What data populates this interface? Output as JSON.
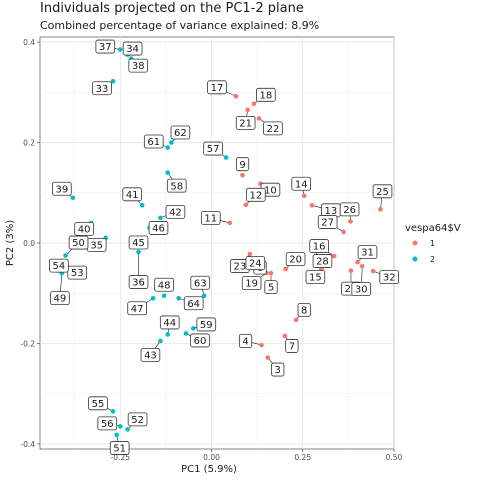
{
  "chart_data": {
    "type": "scatter",
    "title": "Individuals projected on the PC1-2 plane",
    "subtitle": "Combined percentage of variance explained: 8.9%",
    "xlabel": "PC1 (5.9%)",
    "ylabel": "PC2 (3%)",
    "xlim": [
      -0.47,
      0.5
    ],
    "ylim": [
      -0.41,
      0.41
    ],
    "x_ticks": [
      -0.25,
      0.0,
      0.25,
      0.5
    ],
    "x_tick_labels": [
      "-0.25",
      "0.00",
      "0.25",
      "0.50"
    ],
    "y_ticks": [
      -0.4,
      -0.2,
      0.0,
      0.2,
      0.4
    ],
    "y_tick_labels": [
      "-0.4",
      "-0.2",
      "0.0",
      "0.2",
      "0.4"
    ],
    "grid": true,
    "legend": {
      "title": "vespa64$V",
      "placement": "right",
      "entries": [
        {
          "name": "1",
          "color": "#F8766D"
        },
        {
          "name": "2",
          "color": "#00BFC4"
        }
      ]
    },
    "series": [
      {
        "name": "1",
        "color": "#F8766D",
        "points": [
          {
            "label": "3",
            "x": 0.154,
            "y": -0.228
          },
          {
            "label": "4",
            "x": 0.137,
            "y": -0.203
          },
          {
            "label": "5",
            "x": 0.163,
            "y": -0.06
          },
          {
            "label": "6",
            "x": 0.1,
            "y": -0.037
          },
          {
            "label": "7",
            "x": 0.201,
            "y": -0.185
          },
          {
            "label": "8",
            "x": 0.232,
            "y": -0.153
          },
          {
            "label": "9",
            "x": 0.085,
            "y": 0.135
          },
          {
            "label": "10",
            "x": 0.134,
            "y": 0.118
          },
          {
            "label": "11",
            "x": 0.05,
            "y": 0.04
          },
          {
            "label": "12",
            "x": 0.094,
            "y": 0.076
          },
          {
            "label": "13",
            "x": 0.275,
            "y": 0.075
          },
          {
            "label": "14",
            "x": 0.254,
            "y": 0.094
          },
          {
            "label": "15",
            "x": 0.301,
            "y": -0.052
          },
          {
            "label": "16",
            "x": 0.336,
            "y": -0.026
          },
          {
            "label": "17",
            "x": 0.067,
            "y": 0.292
          },
          {
            "label": "18",
            "x": 0.116,
            "y": 0.277
          },
          {
            "label": "19",
            "x": 0.151,
            "y": -0.06
          },
          {
            "label": "20",
            "x": 0.203,
            "y": -0.052
          },
          {
            "label": "21",
            "x": 0.099,
            "y": 0.265
          },
          {
            "label": "22",
            "x": 0.13,
            "y": 0.248
          },
          {
            "label": "23",
            "x": 0.105,
            "y": -0.022
          },
          {
            "label": "24",
            "x": 0.12,
            "y": -0.04
          },
          {
            "label": "25",
            "x": 0.463,
            "y": 0.067
          },
          {
            "label": "26",
            "x": 0.381,
            "y": 0.043
          },
          {
            "label": "27",
            "x": 0.362,
            "y": 0.022
          },
          {
            "label": "28",
            "x": 0.282,
            "y": -0.016
          },
          {
            "label": "29",
            "x": 0.382,
            "y": -0.055
          },
          {
            "label": "30",
            "x": 0.413,
            "y": -0.046
          },
          {
            "label": "31",
            "x": 0.4,
            "y": -0.038
          },
          {
            "label": "32",
            "x": 0.443,
            "y": -0.056
          }
        ]
      },
      {
        "name": "2",
        "color": "#00BFC4",
        "points": [
          {
            "label": "33",
            "x": -0.27,
            "y": 0.322
          },
          {
            "label": "34",
            "x": -0.23,
            "y": 0.375
          },
          {
            "label": "35",
            "x": -0.29,
            "y": 0.01
          },
          {
            "label": "36",
            "x": -0.2,
            "y": -0.018
          },
          {
            "label": "37",
            "x": -0.25,
            "y": 0.385
          },
          {
            "label": "38",
            "x": -0.22,
            "y": 0.367
          },
          {
            "label": "39",
            "x": -0.38,
            "y": 0.09
          },
          {
            "label": "40",
            "x": -0.33,
            "y": 0.04
          },
          {
            "label": "41",
            "x": -0.19,
            "y": 0.075
          },
          {
            "label": "42",
            "x": -0.14,
            "y": 0.05
          },
          {
            "label": "43",
            "x": -0.14,
            "y": -0.195
          },
          {
            "label": "44",
            "x": -0.12,
            "y": -0.182
          },
          {
            "label": "45",
            "x": -0.2,
            "y": 0.001
          },
          {
            "label": "46",
            "x": -0.17,
            "y": 0.03
          },
          {
            "label": "47",
            "x": -0.16,
            "y": -0.11
          },
          {
            "label": "48",
            "x": -0.13,
            "y": -0.105
          },
          {
            "label": "49",
            "x": -0.41,
            "y": -0.06
          },
          {
            "label": "50",
            "x": -0.4,
            "y": -0.025
          },
          {
            "label": "51",
            "x": -0.26,
            "y": -0.382
          },
          {
            "label": "52",
            "x": -0.23,
            "y": -0.371
          },
          {
            "label": "53",
            "x": -0.42,
            "y": -0.055
          },
          {
            "label": "54",
            "x": -0.41,
            "y": -0.043
          },
          {
            "label": "55",
            "x": -0.27,
            "y": -0.335
          },
          {
            "label": "56",
            "x": -0.25,
            "y": -0.365
          },
          {
            "label": "57",
            "x": 0.04,
            "y": 0.17
          },
          {
            "label": "58",
            "x": -0.12,
            "y": 0.14
          },
          {
            "label": "59",
            "x": -0.05,
            "y": -0.17
          },
          {
            "label": "60",
            "x": -0.07,
            "y": -0.18
          },
          {
            "label": "61",
            "x": -0.12,
            "y": 0.19
          },
          {
            "label": "62",
            "x": -0.11,
            "y": 0.2
          },
          {
            "label": "63",
            "x": -0.02,
            "y": -0.105
          },
          {
            "label": "64",
            "x": -0.09,
            "y": -0.11
          }
        ]
      }
    ]
  }
}
